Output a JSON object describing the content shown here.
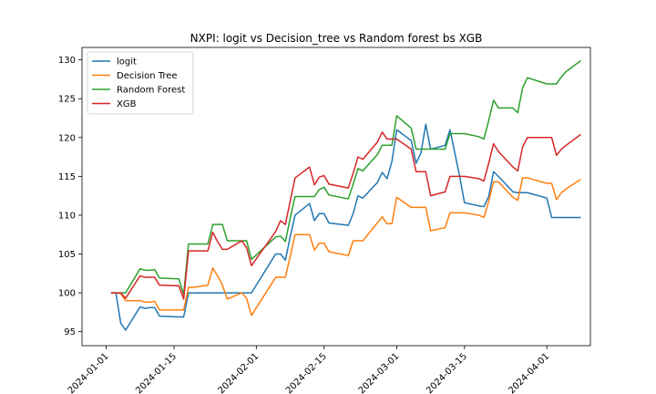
{
  "chart_data": {
    "type": "line",
    "title": "NXPI: logit vs Decision_tree vs Random forest bs XGB",
    "xlabel": "",
    "ylabel": "",
    "xlim": [
      "2023-12-27",
      "2024-04-10"
    ],
    "ylim": [
      93.2,
      131.6
    ],
    "x_ticks": [
      "2024-01-01",
      "2024-01-15",
      "2024-02-01",
      "2024-02-15",
      "2024-03-01",
      "2024-03-15",
      "2024-04-01"
    ],
    "y_ticks": [
      95,
      100,
      105,
      110,
      115,
      120,
      125,
      130
    ],
    "legend_position": "top-left",
    "grid": false,
    "series": [
      {
        "name": "logit",
        "color": "#1f77b4",
        "points": [
          [
            "2024-01-02",
            100.0
          ],
          [
            "2024-01-03",
            100.0
          ],
          [
            "2024-01-04",
            96.1
          ],
          [
            "2024-01-05",
            95.2
          ],
          [
            "2024-01-08",
            98.2
          ],
          [
            "2024-01-09",
            98.0
          ],
          [
            "2024-01-10",
            98.1
          ],
          [
            "2024-01-11",
            98.1
          ],
          [
            "2024-01-12",
            97.0
          ],
          [
            "2024-01-16",
            96.9
          ],
          [
            "2024-01-17",
            96.9
          ],
          [
            "2024-01-18",
            100.0
          ],
          [
            "2024-01-19",
            100.0
          ],
          [
            "2024-01-22",
            100.0
          ],
          [
            "2024-01-23",
            100.0
          ],
          [
            "2024-01-24",
            100.0
          ],
          [
            "2024-01-25",
            100.0
          ],
          [
            "2024-01-26",
            100.0
          ],
          [
            "2024-01-29",
            100.0
          ],
          [
            "2024-01-30",
            100.0
          ],
          [
            "2024-01-31",
            100.0
          ],
          [
            "2024-02-05",
            105.0
          ],
          [
            "2024-02-06",
            105.0
          ],
          [
            "2024-02-07",
            104.2
          ],
          [
            "2024-02-08",
            107.2
          ],
          [
            "2024-02-09",
            110.0
          ],
          [
            "2024-02-12",
            111.5
          ],
          [
            "2024-02-13",
            109.3
          ],
          [
            "2024-02-14",
            110.2
          ],
          [
            "2024-02-15",
            110.2
          ],
          [
            "2024-02-16",
            109.0
          ],
          [
            "2024-02-20",
            108.7
          ],
          [
            "2024-02-21",
            110.2
          ],
          [
            "2024-02-22",
            112.5
          ],
          [
            "2024-02-23",
            112.2
          ],
          [
            "2024-02-26",
            114.2
          ],
          [
            "2024-02-27",
            115.5
          ],
          [
            "2024-02-28",
            114.7
          ],
          [
            "2024-02-29",
            116.9
          ],
          [
            "2024-03-01",
            121.0
          ],
          [
            "2024-03-04",
            119.6
          ],
          [
            "2024-03-05",
            116.7
          ],
          [
            "2024-03-06",
            118.0
          ],
          [
            "2024-03-07",
            121.7
          ],
          [
            "2024-03-08",
            118.5
          ],
          [
            "2024-03-11",
            119.0
          ],
          [
            "2024-03-12",
            121.0
          ],
          [
            "2024-03-13",
            118.0
          ],
          [
            "2024-03-14",
            115.0
          ],
          [
            "2024-03-15",
            111.6
          ],
          [
            "2024-03-18",
            111.2
          ],
          [
            "2024-03-19",
            111.1
          ],
          [
            "2024-03-20",
            112.4
          ],
          [
            "2024-03-21",
            115.6
          ],
          [
            "2024-03-22",
            115.0
          ],
          [
            "2024-03-25",
            113.0
          ],
          [
            "2024-03-26",
            112.9
          ],
          [
            "2024-03-27",
            112.9
          ],
          [
            "2024-03-28",
            112.9
          ],
          [
            "2024-04-01",
            112.2
          ],
          [
            "2024-04-02",
            109.7
          ],
          [
            "2024-04-03",
            109.7
          ],
          [
            "2024-04-04",
            109.7
          ],
          [
            "2024-04-05",
            109.7
          ],
          [
            "2024-04-08",
            109.7
          ]
        ]
      },
      {
        "name": "Decision Tree",
        "color": "#ff7f0e",
        "points": [
          [
            "2024-01-02",
            100.0
          ],
          [
            "2024-01-03",
            100.0
          ],
          [
            "2024-01-04",
            99.9
          ],
          [
            "2024-01-05",
            99.0
          ],
          [
            "2024-01-08",
            99.0
          ],
          [
            "2024-01-09",
            98.8
          ],
          [
            "2024-01-10",
            98.8
          ],
          [
            "2024-01-11",
            98.9
          ],
          [
            "2024-01-12",
            97.8
          ],
          [
            "2024-01-16",
            97.8
          ],
          [
            "2024-01-17",
            97.8
          ],
          [
            "2024-01-18",
            100.7
          ],
          [
            "2024-01-19",
            100.7
          ],
          [
            "2024-01-22",
            101.0
          ],
          [
            "2024-01-23",
            103.2
          ],
          [
            "2024-01-24",
            102.2
          ],
          [
            "2024-01-25",
            101.0
          ],
          [
            "2024-01-26",
            99.2
          ],
          [
            "2024-01-29",
            100.0
          ],
          [
            "2024-01-30",
            99.3
          ],
          [
            "2024-01-31",
            97.1
          ],
          [
            "2024-02-05",
            102.0
          ],
          [
            "2024-02-06",
            102.0
          ],
          [
            "2024-02-07",
            102.0
          ],
          [
            "2024-02-08",
            104.7
          ],
          [
            "2024-02-09",
            107.5
          ],
          [
            "2024-02-12",
            107.5
          ],
          [
            "2024-02-13",
            105.5
          ],
          [
            "2024-02-14",
            106.4
          ],
          [
            "2024-02-15",
            106.4
          ],
          [
            "2024-02-16",
            105.3
          ],
          [
            "2024-02-20",
            104.8
          ],
          [
            "2024-02-21",
            106.7
          ],
          [
            "2024-02-22",
            106.7
          ],
          [
            "2024-02-23",
            106.7
          ],
          [
            "2024-02-26",
            109.0
          ],
          [
            "2024-02-27",
            109.8
          ],
          [
            "2024-02-28",
            108.9
          ],
          [
            "2024-02-29",
            108.9
          ],
          [
            "2024-03-01",
            112.3
          ],
          [
            "2024-03-04",
            111.0
          ],
          [
            "2024-03-05",
            111.0
          ],
          [
            "2024-03-06",
            111.0
          ],
          [
            "2024-03-07",
            111.0
          ],
          [
            "2024-03-08",
            108.0
          ],
          [
            "2024-03-11",
            108.4
          ],
          [
            "2024-03-12",
            110.3
          ],
          [
            "2024-03-13",
            110.3
          ],
          [
            "2024-03-14",
            110.3
          ],
          [
            "2024-03-15",
            110.3
          ],
          [
            "2024-03-18",
            110.0
          ],
          [
            "2024-03-19",
            109.7
          ],
          [
            "2024-03-20",
            111.8
          ],
          [
            "2024-03-21",
            114.3
          ],
          [
            "2024-03-22",
            114.3
          ],
          [
            "2024-03-25",
            112.3
          ],
          [
            "2024-03-26",
            111.9
          ],
          [
            "2024-03-27",
            114.8
          ],
          [
            "2024-03-28",
            114.8
          ],
          [
            "2024-04-01",
            114.1
          ],
          [
            "2024-04-02",
            114.1
          ],
          [
            "2024-04-03",
            112.0
          ],
          [
            "2024-04-04",
            112.9
          ],
          [
            "2024-04-05",
            113.4
          ],
          [
            "2024-04-08",
            114.6
          ]
        ]
      },
      {
        "name": "Random Forest",
        "color": "#2ca02c",
        "points": [
          [
            "2024-01-02",
            100.0
          ],
          [
            "2024-01-03",
            100.0
          ],
          [
            "2024-01-04",
            100.0
          ],
          [
            "2024-01-05",
            100.0
          ],
          [
            "2024-01-08",
            103.1
          ],
          [
            "2024-01-09",
            102.9
          ],
          [
            "2024-01-10",
            102.9
          ],
          [
            "2024-01-11",
            103.0
          ],
          [
            "2024-01-12",
            101.9
          ],
          [
            "2024-01-16",
            101.8
          ],
          [
            "2024-01-17",
            99.8
          ],
          [
            "2024-01-18",
            106.3
          ],
          [
            "2024-01-19",
            106.3
          ],
          [
            "2024-01-22",
            106.3
          ],
          [
            "2024-01-23",
            108.8
          ],
          [
            "2024-01-24",
            108.8
          ],
          [
            "2024-01-25",
            108.8
          ],
          [
            "2024-01-26",
            106.7
          ],
          [
            "2024-01-29",
            106.7
          ],
          [
            "2024-01-30",
            106.7
          ],
          [
            "2024-01-31",
            104.3
          ],
          [
            "2024-02-05",
            107.2
          ],
          [
            "2024-02-06",
            107.3
          ],
          [
            "2024-02-07",
            106.6
          ],
          [
            "2024-02-08",
            109.6
          ],
          [
            "2024-02-09",
            112.4
          ],
          [
            "2024-02-12",
            112.4
          ],
          [
            "2024-02-13",
            112.4
          ],
          [
            "2024-02-14",
            113.3
          ],
          [
            "2024-02-15",
            113.6
          ],
          [
            "2024-02-16",
            112.6
          ],
          [
            "2024-02-20",
            112.1
          ],
          [
            "2024-02-21",
            114.0
          ],
          [
            "2024-02-22",
            116.0
          ],
          [
            "2024-02-23",
            115.7
          ],
          [
            "2024-02-26",
            117.8
          ],
          [
            "2024-02-27",
            119.0
          ],
          [
            "2024-02-28",
            119.0
          ],
          [
            "2024-02-29",
            119.0
          ],
          [
            "2024-03-01",
            122.8
          ],
          [
            "2024-03-04",
            121.2
          ],
          [
            "2024-03-05",
            118.5
          ],
          [
            "2024-03-06",
            118.5
          ],
          [
            "2024-03-07",
            118.5
          ],
          [
            "2024-03-08",
            118.5
          ],
          [
            "2024-03-11",
            118.5
          ],
          [
            "2024-03-12",
            120.5
          ],
          [
            "2024-03-13",
            120.5
          ],
          [
            "2024-03-14",
            120.5
          ],
          [
            "2024-03-15",
            120.5
          ],
          [
            "2024-03-18",
            120.1
          ],
          [
            "2024-03-19",
            119.8
          ],
          [
            "2024-03-20",
            122.2
          ],
          [
            "2024-03-21",
            124.8
          ],
          [
            "2024-03-22",
            123.8
          ],
          [
            "2024-03-25",
            123.8
          ],
          [
            "2024-03-26",
            123.2
          ],
          [
            "2024-03-27",
            126.4
          ],
          [
            "2024-03-28",
            127.7
          ],
          [
            "2024-04-01",
            126.9
          ],
          [
            "2024-04-02",
            126.9
          ],
          [
            "2024-04-03",
            126.9
          ],
          [
            "2024-04-04",
            127.8
          ],
          [
            "2024-04-05",
            128.5
          ],
          [
            "2024-04-08",
            129.9
          ]
        ]
      },
      {
        "name": "XGB",
        "color": "#d62728",
        "points": [
          [
            "2024-01-02",
            100.0
          ],
          [
            "2024-01-03",
            100.0
          ],
          [
            "2024-01-04",
            100.0
          ],
          [
            "2024-01-05",
            99.3
          ],
          [
            "2024-01-08",
            102.2
          ],
          [
            "2024-01-09",
            102.0
          ],
          [
            "2024-01-10",
            102.0
          ],
          [
            "2024-01-11",
            102.0
          ],
          [
            "2024-01-12",
            101.0
          ],
          [
            "2024-01-16",
            100.9
          ],
          [
            "2024-01-17",
            99.2
          ],
          [
            "2024-01-18",
            105.4
          ],
          [
            "2024-01-19",
            105.4
          ],
          [
            "2024-01-22",
            105.4
          ],
          [
            "2024-01-23",
            107.8
          ],
          [
            "2024-01-24",
            106.6
          ],
          [
            "2024-01-25",
            105.6
          ],
          [
            "2024-01-26",
            105.6
          ],
          [
            "2024-01-29",
            106.7
          ],
          [
            "2024-01-30",
            105.8
          ],
          [
            "2024-01-31",
            103.5
          ],
          [
            "2024-02-05",
            107.9
          ],
          [
            "2024-02-06",
            109.3
          ],
          [
            "2024-02-07",
            108.8
          ],
          [
            "2024-02-08",
            111.8
          ],
          [
            "2024-02-09",
            114.8
          ],
          [
            "2024-02-12",
            116.2
          ],
          [
            "2024-02-13",
            113.9
          ],
          [
            "2024-02-14",
            114.9
          ],
          [
            "2024-02-15",
            115.1
          ],
          [
            "2024-02-16",
            114.0
          ],
          [
            "2024-02-20",
            113.5
          ],
          [
            "2024-02-21",
            115.4
          ],
          [
            "2024-02-22",
            117.5
          ],
          [
            "2024-02-23",
            117.2
          ],
          [
            "2024-02-26",
            119.4
          ],
          [
            "2024-02-27",
            120.7
          ],
          [
            "2024-02-28",
            119.8
          ],
          [
            "2024-02-29",
            119.8
          ],
          [
            "2024-03-01",
            119.8
          ],
          [
            "2024-03-04",
            118.5
          ],
          [
            "2024-03-05",
            115.6
          ],
          [
            "2024-03-06",
            115.6
          ],
          [
            "2024-03-07",
            115.6
          ],
          [
            "2024-03-08",
            112.5
          ],
          [
            "2024-03-11",
            113.0
          ],
          [
            "2024-03-12",
            115.0
          ],
          [
            "2024-03-13",
            115.0
          ],
          [
            "2024-03-14",
            115.0
          ],
          [
            "2024-03-15",
            115.0
          ],
          [
            "2024-03-18",
            114.7
          ],
          [
            "2024-03-19",
            114.4
          ],
          [
            "2024-03-20",
            116.7
          ],
          [
            "2024-03-21",
            119.2
          ],
          [
            "2024-03-22",
            118.2
          ],
          [
            "2024-03-25",
            116.2
          ],
          [
            "2024-03-26",
            115.7
          ],
          [
            "2024-03-27",
            118.8
          ],
          [
            "2024-03-28",
            120.0
          ],
          [
            "2024-04-01",
            120.0
          ],
          [
            "2024-04-02",
            120.0
          ],
          [
            "2024-04-03",
            117.7
          ],
          [
            "2024-04-04",
            118.5
          ],
          [
            "2024-04-05",
            119.0
          ],
          [
            "2024-04-08",
            120.4
          ]
        ]
      }
    ]
  }
}
